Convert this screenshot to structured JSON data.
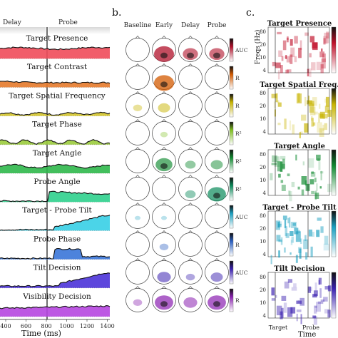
{
  "panel_a": {
    "header": {
      "delay": "Delay",
      "probe": "Probe"
    },
    "rows": [
      {
        "title": "Target Presence",
        "color": "#ef4b5a"
      },
      {
        "title": "Target Contrast",
        "color": "#e57a2b"
      },
      {
        "title": "Target Spatial Frequency",
        "color": "#d4c52b"
      },
      {
        "title": "Target Phase",
        "color": "#9bcc3c"
      },
      {
        "title": "Target Angle",
        "color": "#2fb84b"
      },
      {
        "title": "Probe Angle",
        "color": "#2fd08d"
      },
      {
        "title": "Target - Probe Tilt",
        "color": "#37cfe6"
      },
      {
        "title": "Probe Phase",
        "color": "#3a76d8"
      },
      {
        "title": "Tilt Decision",
        "color": "#4b33d8"
      },
      {
        "title": "Visibility Decision",
        "color": "#b646e0"
      }
    ],
    "x_ticks": [
      "400",
      "600",
      "800",
      "1000",
      "1200",
      "1400"
    ],
    "x_label": "Time (ms)"
  },
  "panel_b": {
    "letter": "b.",
    "columns": [
      "Baseline",
      "Early",
      "Delay",
      "Probe"
    ],
    "colorbars": [
      {
        "label": "AUC",
        "color": "#b0102a"
      },
      {
        "label": "R",
        "color": "#d35a00"
      },
      {
        "label": "R",
        "color": "#c8b400"
      },
      {
        "label": "R²",
        "color": "#7fbf20"
      },
      {
        "label": "R²",
        "color": "#108a30"
      },
      {
        "label": "R²",
        "color": "#0a8a5a"
      },
      {
        "label": "AUC",
        "color": "#1a9fc0"
      },
      {
        "label": "R",
        "color": "#2a5fc0"
      },
      {
        "label": "AUC",
        "color": "#3a20b0"
      },
      {
        "label": "R",
        "color": "#8a20b0"
      }
    ]
  },
  "panel_c": {
    "letter": "c.",
    "maps": [
      {
        "title": "Target Presence",
        "color": "#c0102a"
      },
      {
        "title": "Target Spatial Freq.",
        "color": "#c8b400"
      },
      {
        "title": "Target Angle",
        "color": "#108a30"
      },
      {
        "title": "Target - Probe Tilt",
        "color": "#1a9fc0"
      },
      {
        "title": "Tilt Decision",
        "color": "#3a20b0"
      }
    ],
    "y_label": "Freqs (Hz)",
    "y_ticks": [
      "80",
      "20",
      "10",
      "4"
    ],
    "x_ticks": [
      "Target",
      "Probe"
    ],
    "x_label": "Time"
  }
}
